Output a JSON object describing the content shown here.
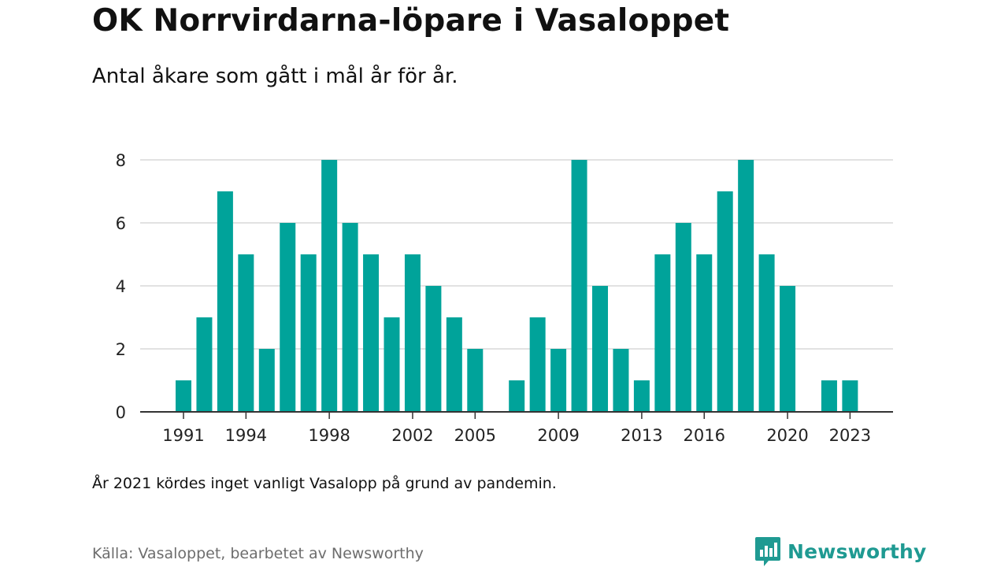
{
  "title": "OK Norrvirdarna-löpare i Vasaloppet",
  "subtitle": "Antal åkare som gått i mål år för år.",
  "note": "År 2021 kördes inget vanligt Vasalopp på grund av pandemin.",
  "source": "Källa: Vasaloppet, bearbetet av Newsworthy",
  "logo": {
    "text": "Newsworthy",
    "icon": "bar-chart-speech-bubble-icon",
    "color": "#1f9a92"
  },
  "chart_data": {
    "type": "bar",
    "color": "#00a39a",
    "categories": [
      1991,
      1992,
      1993,
      1994,
      1995,
      1996,
      1997,
      1998,
      1999,
      2000,
      2001,
      2002,
      2003,
      2004,
      2005,
      2006,
      2007,
      2008,
      2009,
      2010,
      2011,
      2012,
      2013,
      2014,
      2015,
      2016,
      2017,
      2018,
      2019,
      2020,
      2021,
      2022,
      2023
    ],
    "values": [
      1,
      3,
      7,
      5,
      2,
      6,
      5,
      8,
      6,
      5,
      3,
      5,
      4,
      3,
      2,
      0,
      1,
      3,
      2,
      8,
      4,
      2,
      1,
      5,
      6,
      5,
      7,
      8,
      5,
      4,
      0,
      1,
      1
    ],
    "x_tick_labels": [
      "1991",
      "1994",
      "1998",
      "2002",
      "2005",
      "2009",
      "2013",
      "2016",
      "2020",
      "2023"
    ],
    "y_ticks": [
      0,
      2,
      4,
      6,
      8
    ],
    "ylim": [
      0,
      8
    ],
    "xlabel": "",
    "ylabel": "",
    "grid": true
  }
}
